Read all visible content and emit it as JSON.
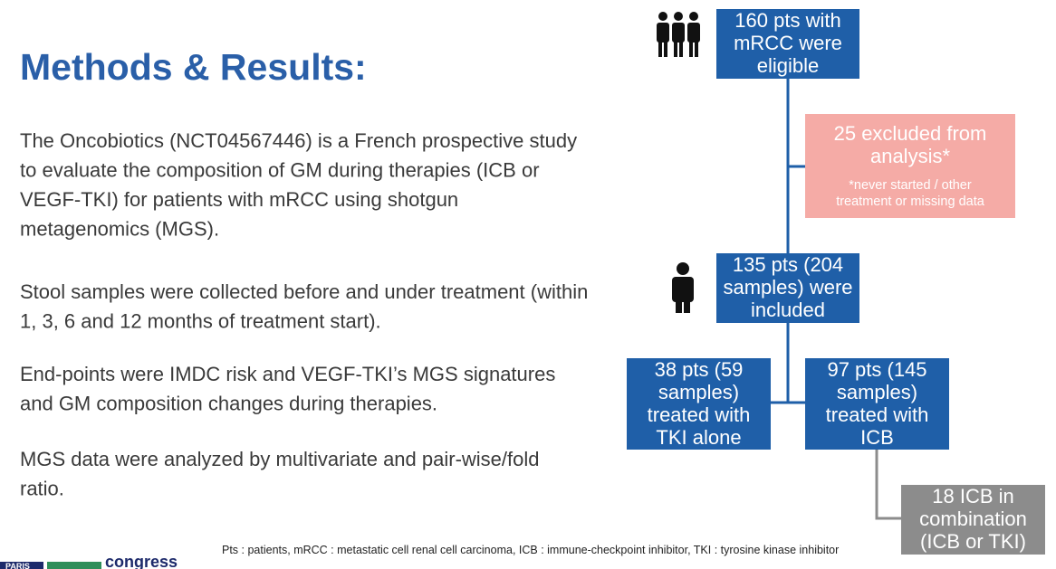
{
  "header": {
    "title": "Methods & Results:"
  },
  "paragraphs": [
    [
      "The Oncobiotics (NCT04567446) is a French prospective study",
      "to evaluate the composition of GM during therapies (ICB or",
      "VEGF-TKI) for patients with mRCC using shotgun",
      "metagenomics (MGS)."
    ],
    [
      "Stool samples were collected before and under treatment (within",
      "1, 3, 6 and 12 months of treatment start)."
    ],
    [
      "End-points were IMDC risk and VEGF-TKI’s MGS signatures",
      "and GM composition changes during therapies."
    ],
    [
      "MGS data were analyzed by multivariate and pair-wise/fold",
      "ratio."
    ]
  ],
  "nodes": [
    {
      "lines": [
        "160 pts with",
        "mRCC were",
        "eligible"
      ]
    },
    {
      "lines": [
        "25 excluded from",
        "analysis*"
      ],
      "note": [
        "*never started / other",
        "treatment or missing data"
      ]
    },
    {
      "lines": [
        "135 pts (204",
        "samples) were",
        "included"
      ]
    },
    {
      "lines": [
        "38 pts (59",
        "samples)",
        "treated with",
        "TKI alone"
      ]
    },
    {
      "lines": [
        "97 pts (145",
        "samples)",
        "treated with",
        "ICB"
      ]
    },
    {
      "lines": [
        "18 ICB in",
        "combination",
        "(ICB or TKI)"
      ]
    }
  ],
  "footnote": "Pts : patients, mRCC : metastatic cell renal cell carcinoma, ICB : immune-checkpoint inhibitor, TKI : tyrosine kinase inhibitor",
  "logo": {
    "city": "PARIS",
    "word": "congress"
  }
}
